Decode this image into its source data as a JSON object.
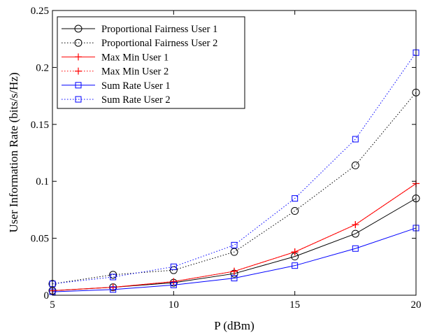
{
  "chart_data": {
    "type": "line",
    "title": "",
    "xlabel": "P (dBm)",
    "ylabel": "User Information Rate (bits/s/Hz)",
    "xlim": [
      5,
      20
    ],
    "ylim": [
      0,
      0.25
    ],
    "xticks": [
      5,
      10,
      15,
      20
    ],
    "xtick_labels": [
      "5",
      "10",
      "15",
      "20"
    ],
    "yticks": [
      0,
      0.05,
      0.1,
      0.15,
      0.2,
      0.25
    ],
    "ytick_labels": [
      "0",
      "0.05",
      "0.1",
      "0.15",
      "0.2",
      "0.25"
    ],
    "grid": false,
    "legend_position": "top-left",
    "x": [
      5,
      7.5,
      10,
      12.5,
      15,
      17.5,
      20
    ],
    "series": [
      {
        "name": "Proportional Fairness User 1",
        "color": "#000000",
        "dash": "solid",
        "marker": "circle",
        "values": [
          0.004,
          0.007,
          0.011,
          0.019,
          0.034,
          0.054,
          0.085
        ]
      },
      {
        "name": "Proportional Fairness User 2",
        "color": "#000000",
        "dash": "dotted",
        "marker": "circle",
        "values": [
          0.01,
          0.018,
          0.022,
          0.038,
          0.074,
          0.114,
          0.178
        ]
      },
      {
        "name": "Max Min User 1",
        "color": "#ff0000",
        "dash": "solid",
        "marker": "plus",
        "values": [
          0.004,
          0.007,
          0.012,
          0.021,
          0.038,
          0.062,
          0.098
        ]
      },
      {
        "name": "Max Min User 2",
        "color": "#ff0000",
        "dash": "dotted",
        "marker": "plus",
        "values": [
          0.004,
          0.007,
          0.012,
          0.021,
          0.038,
          0.062,
          0.098
        ]
      },
      {
        "name": "Sum Rate User 1",
        "color": "#0000ff",
        "dash": "solid",
        "marker": "square",
        "values": [
          0.003,
          0.005,
          0.009,
          0.015,
          0.026,
          0.041,
          0.059
        ]
      },
      {
        "name": "Sum Rate User 2",
        "color": "#0000ff",
        "dash": "dotted",
        "marker": "square",
        "values": [
          0.01,
          0.016,
          0.025,
          0.044,
          0.085,
          0.137,
          0.213
        ]
      }
    ]
  }
}
